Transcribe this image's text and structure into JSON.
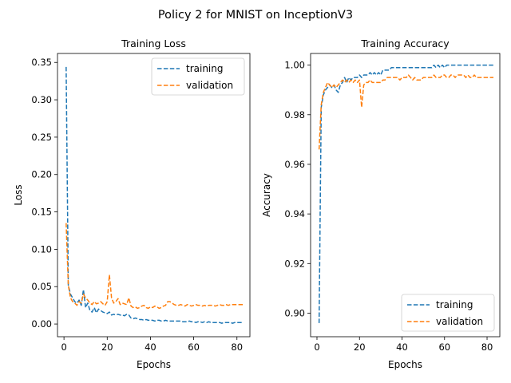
{
  "suptitle": "Policy 2 for MNIST on InceptionV3",
  "colors": {
    "training": "#1f77b4",
    "validation": "#ff7f0e"
  },
  "chart_data": [
    {
      "type": "line",
      "title": "Training Loss",
      "xlabel": "Epochs",
      "ylabel": "Loss",
      "xlim": [
        -3,
        86
      ],
      "ylim": [
        -0.017,
        0.362
      ],
      "xticks": [
        0,
        20,
        40,
        60,
        80
      ],
      "xtick_labels": [
        "0",
        "20",
        "40",
        "60",
        "80"
      ],
      "yticks": [
        0.0,
        0.05,
        0.1,
        0.15,
        0.2,
        0.25,
        0.3,
        0.35
      ],
      "ytick_labels": [
        "0.00",
        "0.05",
        "0.10",
        "0.15",
        "0.20",
        "0.25",
        "0.30",
        "0.35"
      ],
      "legend": "top-right",
      "linestyle": "dashed",
      "x": [
        1,
        2,
        3,
        4,
        5,
        6,
        7,
        8,
        9,
        10,
        11,
        12,
        13,
        14,
        15,
        16,
        17,
        18,
        19,
        20,
        21,
        22,
        23,
        24,
        25,
        26,
        27,
        28,
        29,
        30,
        31,
        32,
        33,
        34,
        35,
        36,
        37,
        38,
        39,
        40,
        41,
        42,
        43,
        44,
        45,
        46,
        47,
        48,
        49,
        50,
        51,
        52,
        53,
        54,
        55,
        56,
        57,
        58,
        59,
        60,
        61,
        62,
        63,
        64,
        65,
        66,
        67,
        68,
        69,
        70,
        71,
        72,
        73,
        74,
        75,
        76,
        77,
        78,
        79,
        80,
        81,
        82,
        83
      ],
      "series": [
        {
          "name": "training",
          "values": [
            0.344,
            0.052,
            0.04,
            0.035,
            0.03,
            0.028,
            0.032,
            0.025,
            0.046,
            0.022,
            0.028,
            0.018,
            0.016,
            0.022,
            0.015,
            0.02,
            0.018,
            0.016,
            0.015,
            0.014,
            0.016,
            0.012,
            0.013,
            0.012,
            0.013,
            0.012,
            0.012,
            0.011,
            0.013,
            0.012,
            0.008,
            0.007,
            0.008,
            0.007,
            0.006,
            0.006,
            0.005,
            0.006,
            0.005,
            0.005,
            0.005,
            0.004,
            0.005,
            0.005,
            0.004,
            0.004,
            0.005,
            0.004,
            0.004,
            0.004,
            0.004,
            0.004,
            0.004,
            0.004,
            0.003,
            0.003,
            0.003,
            0.004,
            0.003,
            0.003,
            0.002,
            0.003,
            0.003,
            0.002,
            0.003,
            0.002,
            0.003,
            0.002,
            0.002,
            0.002,
            0.002,
            0.002,
            0.001,
            0.002,
            0.002,
            0.002,
            0.002,
            0.001,
            0.002,
            0.002,
            0.002,
            0.002,
            0.002
          ]
        },
        {
          "name": "validation",
          "values": [
            0.135,
            0.052,
            0.035,
            0.03,
            0.028,
            0.025,
            0.03,
            0.028,
            0.04,
            0.035,
            0.032,
            0.028,
            0.026,
            0.03,
            0.027,
            0.028,
            0.03,
            0.027,
            0.025,
            0.03,
            0.066,
            0.035,
            0.028,
            0.03,
            0.034,
            0.026,
            0.028,
            0.027,
            0.026,
            0.035,
            0.024,
            0.022,
            0.023,
            0.021,
            0.022,
            0.024,
            0.025,
            0.022,
            0.021,
            0.023,
            0.022,
            0.024,
            0.023,
            0.021,
            0.022,
            0.024,
            0.025,
            0.03,
            0.03,
            0.028,
            0.026,
            0.025,
            0.025,
            0.026,
            0.025,
            0.024,
            0.026,
            0.025,
            0.024,
            0.025,
            0.026,
            0.025,
            0.025,
            0.024,
            0.025,
            0.024,
            0.025,
            0.025,
            0.025,
            0.024,
            0.025,
            0.026,
            0.025,
            0.025,
            0.026,
            0.025,
            0.026,
            0.026,
            0.026,
            0.026,
            0.026,
            0.026,
            0.026
          ]
        }
      ]
    },
    {
      "type": "line",
      "title": "Training Accuracy",
      "xlabel": "Epochs",
      "ylabel": "Accuracy",
      "xlim": [
        -3,
        86
      ],
      "ylim": [
        0.8905,
        1.0047
      ],
      "xticks": [
        0,
        20,
        40,
        60,
        80
      ],
      "xtick_labels": [
        "0",
        "20",
        "40",
        "60",
        "80"
      ],
      "yticks": [
        0.9,
        0.92,
        0.94,
        0.96,
        0.98,
        1.0
      ],
      "ytick_labels": [
        "0.90",
        "0.92",
        "0.94",
        "0.96",
        "0.98",
        "1.00"
      ],
      "legend": "bottom-right",
      "linestyle": "dashed",
      "x": [
        1,
        2,
        3,
        4,
        5,
        6,
        7,
        8,
        9,
        10,
        11,
        12,
        13,
        14,
        15,
        16,
        17,
        18,
        19,
        20,
        21,
        22,
        23,
        24,
        25,
        26,
        27,
        28,
        29,
        30,
        31,
        32,
        33,
        34,
        35,
        36,
        37,
        38,
        39,
        40,
        41,
        42,
        43,
        44,
        45,
        46,
        47,
        48,
        49,
        50,
        51,
        52,
        53,
        54,
        55,
        56,
        57,
        58,
        59,
        60,
        61,
        62,
        63,
        64,
        65,
        66,
        67,
        68,
        69,
        70,
        71,
        72,
        73,
        74,
        75,
        76,
        77,
        78,
        79,
        80,
        81,
        82,
        83
      ],
      "series": [
        {
          "name": "training",
          "values": [
            0.896,
            0.983,
            0.988,
            0.99,
            0.991,
            0.992,
            0.991,
            0.992,
            0.99,
            0.989,
            0.992,
            0.993,
            0.995,
            0.993,
            0.995,
            0.994,
            0.995,
            0.995,
            0.995,
            0.996,
            0.995,
            0.996,
            0.996,
            0.996,
            0.997,
            0.996,
            0.997,
            0.996,
            0.997,
            0.996,
            0.998,
            0.998,
            0.998,
            0.998,
            0.999,
            0.999,
            0.999,
            0.999,
            0.999,
            0.999,
            0.999,
            0.999,
            0.999,
            0.999,
            0.999,
            0.999,
            0.999,
            0.999,
            0.999,
            0.999,
            0.999,
            0.999,
            0.999,
            0.999,
            1.0,
            0.999,
            1.0,
            0.999,
            1.0,
            0.999,
            1.0,
            1.0,
            1.0,
            1.0,
            1.0,
            1.0,
            1.0,
            1.0,
            1.0,
            1.0,
            1.0,
            1.0,
            1.0,
            1.0,
            1.0,
            1.0,
            1.0,
            1.0,
            1.0,
            1.0,
            1.0,
            1.0,
            1.0
          ]
        },
        {
          "name": "validation",
          "values": [
            0.966,
            0.984,
            0.989,
            0.991,
            0.993,
            0.992,
            0.991,
            0.992,
            0.991,
            0.992,
            0.993,
            0.994,
            0.993,
            0.994,
            0.993,
            0.994,
            0.993,
            0.994,
            0.993,
            0.994,
            0.983,
            0.992,
            0.993,
            0.993,
            0.994,
            0.993,
            0.993,
            0.993,
            0.993,
            0.993,
            0.994,
            0.994,
            0.995,
            0.995,
            0.995,
            0.995,
            0.995,
            0.995,
            0.994,
            0.995,
            0.995,
            0.995,
            0.996,
            0.995,
            0.994,
            0.995,
            0.994,
            0.994,
            0.994,
            0.995,
            0.995,
            0.995,
            0.995,
            0.995,
            0.996,
            0.995,
            0.995,
            0.995,
            0.996,
            0.996,
            0.995,
            0.995,
            0.996,
            0.996,
            0.995,
            0.996,
            0.996,
            0.996,
            0.996,
            0.995,
            0.996,
            0.995,
            0.995,
            0.996,
            0.995,
            0.995,
            0.995,
            0.995,
            0.995,
            0.995,
            0.995,
            0.995,
            0.995
          ]
        }
      ]
    }
  ]
}
